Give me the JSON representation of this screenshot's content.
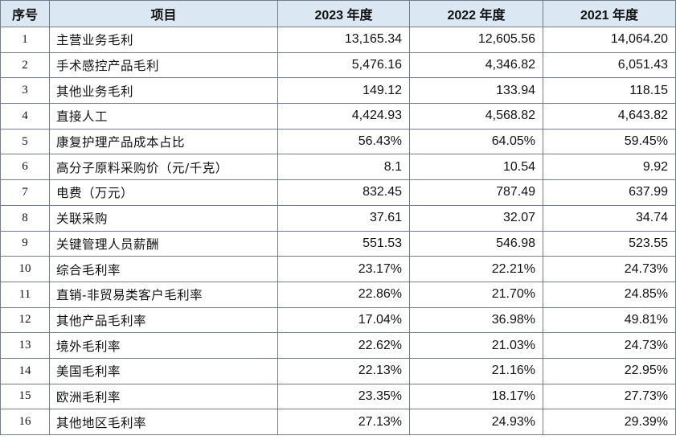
{
  "table": {
    "headers": [
      "序号",
      "项目",
      "2023 年度",
      "2022 年度",
      "2021 年度"
    ],
    "rows": [
      [
        "1",
        "主营业务毛利",
        "13,165.34",
        "12,605.56",
        "14,064.20"
      ],
      [
        "2",
        "手术感控产品毛利",
        "5,476.16",
        "4,346.82",
        "6,051.43"
      ],
      [
        "3",
        "其他业务毛利",
        "149.12",
        "133.94",
        "118.15"
      ],
      [
        "4",
        "直接人工",
        "4,424.93",
        "4,568.82",
        "4,643.82"
      ],
      [
        "5",
        "康复护理产品成本占比",
        "56.43%",
        "64.05%",
        "59.45%"
      ],
      [
        "6",
        "高分子原料采购价（元/千克）",
        "8.1",
        "10.54",
        "9.92"
      ],
      [
        "7",
        "电费（万元）",
        "832.45",
        "787.49",
        "637.99"
      ],
      [
        "8",
        "关联采购",
        "37.61",
        "32.07",
        "34.74"
      ],
      [
        "9",
        "关键管理人员薪酬",
        "551.53",
        "546.98",
        "523.55"
      ],
      [
        "10",
        "综合毛利率",
        "23.17%",
        "22.21%",
        "24.73%"
      ],
      [
        "11",
        "直销-非贸易类客户毛利率",
        "22.86%",
        "21.70%",
        "24.85%"
      ],
      [
        "12",
        "其他产品毛利率",
        "17.04%",
        "36.98%",
        "49.81%"
      ],
      [
        "13",
        "境外毛利率",
        "22.62%",
        "21.03%",
        "24.73%"
      ],
      [
        "14",
        "美国毛利率",
        "22.13%",
        "21.16%",
        "22.95%"
      ],
      [
        "15",
        "欧洲毛利率",
        "23.35%",
        "18.17%",
        "27.73%"
      ],
      [
        "16",
        "其他地区毛利率",
        "27.13%",
        "24.93%",
        "29.39%"
      ]
    ]
  },
  "colors": {
    "header_background": "#dbe7f3",
    "border": "#6f7d8c",
    "text": "#111111"
  }
}
